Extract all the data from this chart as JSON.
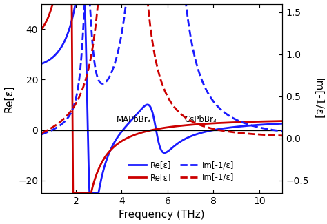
{
  "xlabel": "Frequency (THz)",
  "ylabel_left": "Re[ε]",
  "ylabel_right": "Im[-1/ε]",
  "xlim": [
    0.5,
    11.0
  ],
  "ylim_left": [
    -25,
    50
  ],
  "ylim_right": [
    -0.65,
    1.6
  ],
  "yticks_left": [
    -20,
    0,
    20,
    40
  ],
  "yticks_right": [
    -0.5,
    0.0,
    0.5,
    1.0,
    1.5
  ],
  "xticks": [
    2,
    4,
    6,
    8,
    10
  ],
  "blue_color": "#1a1aff",
  "red_color": "#cc0000",
  "legend_map_label": "MAPbBr₃",
  "legend_cs_label": "CsPbBr₃",
  "legend_re_label": "Re[ε]",
  "legend_im_label": "Im[-1/ε]",
  "lw": 2.0
}
